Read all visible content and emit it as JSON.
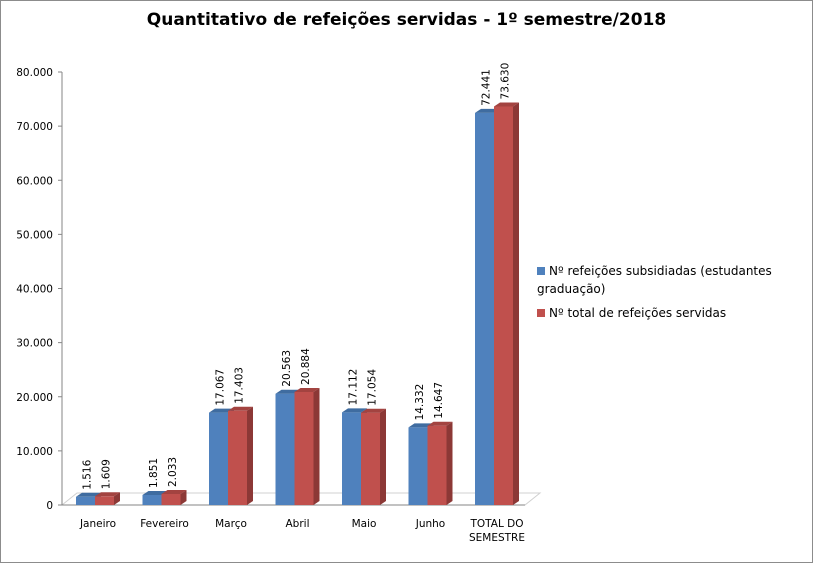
{
  "chart_data": {
    "type": "bar",
    "title": "Quantitativo  de refeições servidas - 1º semestre/2018",
    "categories": [
      "Janeiro",
      "Fevereiro",
      "Março",
      "Abril",
      "Maio",
      "Junho",
      "TOTAL DO SEMESTRE"
    ],
    "series": [
      {
        "name": "Nº refeições subsidiadas (estudantes graduação)",
        "color": "#4f81bd",
        "values": [
          1516,
          1851,
          17067,
          20563,
          17112,
          14332,
          72441
        ],
        "labels": [
          "1.516",
          "1.851",
          "17.067",
          "20.563",
          "17.112",
          "14.332",
          "72.441"
        ]
      },
      {
        "name": "Nº total de refeições servidas",
        "color": "#c0504d",
        "values": [
          1609,
          2033,
          17403,
          20884,
          17054,
          14647,
          73630
        ],
        "labels": [
          "1.609",
          "2.033",
          "17.403",
          "20.884",
          "17.054",
          "14.647",
          "73.630"
        ]
      }
    ],
    "yticks": [
      "0",
      "10.000",
      "20.000",
      "30.000",
      "40.000",
      "50.000",
      "60.000",
      "70.000",
      "80.000"
    ],
    "ylim": [
      0,
      80000
    ],
    "style": "3d-clustered-column",
    "legend": "right",
    "grid": false
  }
}
